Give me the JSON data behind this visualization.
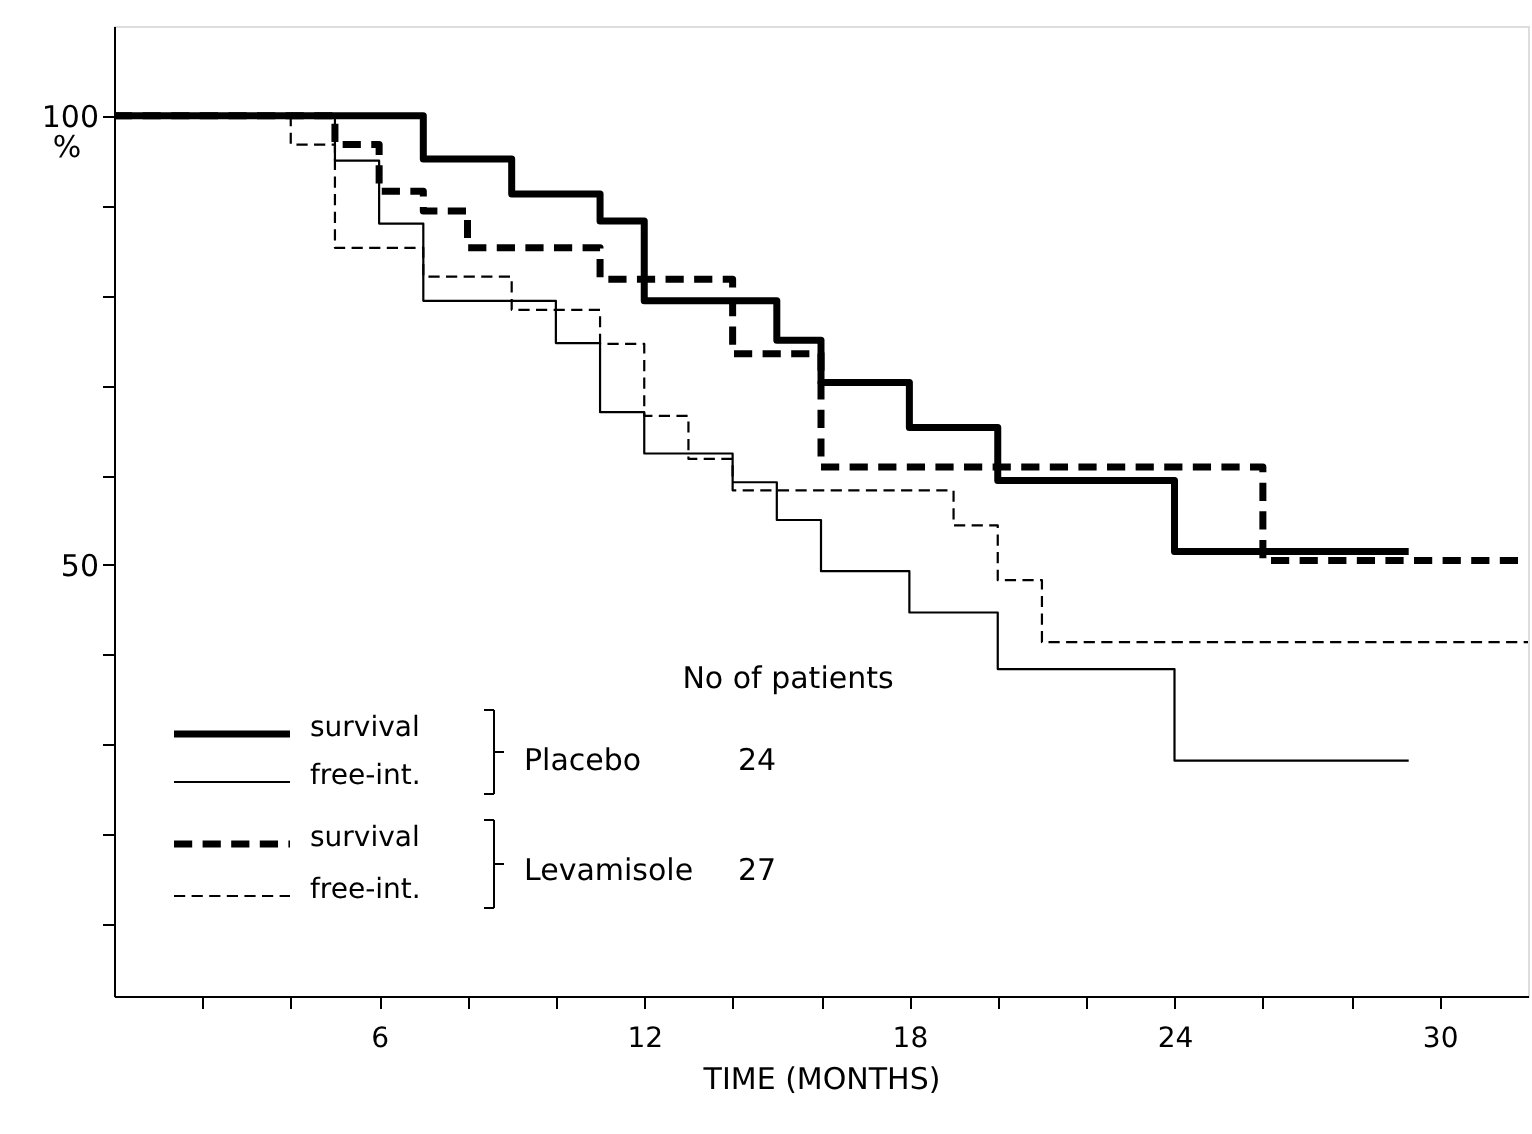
{
  "chart_data": {
    "type": "step",
    "xlabel": "TIME (MONTHS)",
    "ylabel": "%",
    "xlim": [
      0,
      32
    ],
    "ylim": [
      2,
      110
    ],
    "xticks": [
      {
        "value": 2,
        "label": null
      },
      {
        "value": 4,
        "label": null
      },
      6,
      {
        "value": 8,
        "label": null
      },
      {
        "value": 10,
        "label": null
      },
      12,
      {
        "value": 14,
        "label": null
      },
      {
        "value": 16,
        "label": null
      },
      18,
      {
        "value": 20,
        "label": null
      },
      {
        "value": 22,
        "label": null
      },
      24,
      {
        "value": 26,
        "label": null
      },
      {
        "value": 28,
        "label": null
      },
      30
    ],
    "yticks": [
      {
        "value": 10,
        "label": null
      },
      {
        "value": 20,
        "label": null
      },
      {
        "value": 30,
        "label": null
      },
      {
        "value": 40,
        "label": null
      },
      50,
      {
        "value": 60,
        "label": null
      },
      {
        "value": 70,
        "label": null
      },
      {
        "value": 80,
        "label": null
      },
      {
        "value": 90,
        "label": null
      },
      100
    ],
    "grid": false,
    "legend": "bottom left",
    "marker": "none",
    "series": [
      {
        "name": "survival",
        "color": "#000000",
        "line_style": "solid",
        "x": [
          0,
          7,
          9,
          11,
          12,
          15,
          16,
          18,
          20,
          24,
          29.3
        ],
        "values": [
          100,
          95.2,
          91.3,
          88.3,
          79.4,
          75,
          70.3,
          65.3,
          59.4,
          51.5,
          51.5
        ]
      },
      {
        "name": "free-int.",
        "color": "#000000",
        "line_style": "solid",
        "x": [
          0,
          5,
          6,
          7,
          10,
          11,
          12,
          14,
          15,
          16,
          18,
          20,
          24,
          29.3
        ],
        "values": [
          100,
          95,
          88,
          79.4,
          74.7,
          67,
          62.4,
          59.2,
          55,
          49.3,
          44.7,
          38.4,
          28.2,
          28.2
        ]
      },
      {
        "name": "survival",
        "color": "#000000",
        "line_style": "dashed",
        "x": [
          0,
          5,
          6,
          7,
          8,
          11,
          14,
          16,
          26,
          32
        ],
        "values": [
          100,
          96.8,
          91.6,
          89.4,
          85.3,
          81.8,
          73.5,
          60.9,
          50.5,
          50.5
        ]
      },
      {
        "name": "free-int.",
        "color": "#000000",
        "line_style": "dashed",
        "x": [
          0,
          4,
          5,
          7,
          9,
          11,
          12,
          13,
          14,
          19,
          20,
          21,
          32
        ],
        "values": [
          100,
          96.8,
          85.3,
          82.1,
          78.4,
          74.6,
          66.6,
          61.8,
          58.3,
          54.4,
          48.3,
          41.4,
          41.4
        ]
      }
    ],
    "annotations": [
      "No of patients",
      "Placebo",
      "24",
      "Levamisole",
      "27"
    ]
  }
}
